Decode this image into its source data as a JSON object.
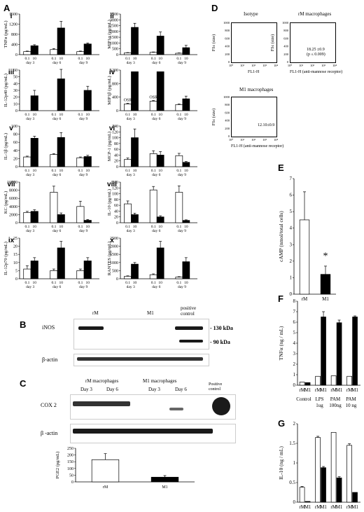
{
  "panel_letters": [
    "A",
    "B",
    "C",
    "D",
    "E",
    "F",
    "G"
  ],
  "chart_data": [
    {
      "id": "A-i",
      "roman": "i",
      "type": "bar",
      "ylabel": "TNFα (pg/mL)",
      "ylim": [
        0,
        1600
      ],
      "yticks": [
        "0",
        "400",
        "800",
        "1200",
        "1600"
      ],
      "categories": [
        "0.1",
        "10",
        "0.1",
        "10",
        "0.1",
        "10"
      ],
      "groups": [
        "day 3",
        "day 6",
        "day 9"
      ],
      "values": [
        120,
        350,
        200,
        1050,
        120,
        420
      ],
      "errors": [
        20,
        40,
        40,
        260,
        20,
        40
      ]
    },
    {
      "id": "A-ii",
      "roman": "ii",
      "type": "bar",
      "ylabel": "MIP1α (pg/mL)",
      "ylim": [
        0,
        3500
      ],
      "yticks": [
        "0",
        "500",
        "1000",
        "1500",
        "2000",
        "2500",
        "3000",
        "3500"
      ],
      "categories": [
        "0.1",
        "10",
        "0.1",
        "10",
        "0.1",
        "10"
      ],
      "groups": [
        "day 3",
        "day 6",
        "day 9"
      ],
      "values": [
        150,
        2350,
        200,
        1600,
        120,
        600
      ],
      "errors": [
        30,
        350,
        30,
        350,
        30,
        200
      ]
    },
    {
      "id": "A-iii",
      "roman": "iii",
      "type": "bar",
      "ylabel": "IL-12p40 (pg/mL)",
      "ylim": [
        0,
        60
      ],
      "yticks": [
        "0",
        "10",
        "20",
        "30",
        "40",
        "50",
        "60"
      ],
      "categories": [
        "0.1",
        "10",
        "0.1",
        "10",
        "0.1",
        "10"
      ],
      "groups": [
        "day 3",
        "day 6",
        "day 9"
      ],
      "values": [
        0,
        22,
        0,
        47,
        0,
        30
      ],
      "errors": [
        0,
        8,
        0,
        14,
        0,
        6
      ]
    },
    {
      "id": "A-iv",
      "roman": "iv",
      "type": "bar",
      "ylabel": "MIP1β (pg/mL)",
      "ylim": [
        0,
        1200
      ],
      "yticks": [
        "0",
        "400",
        "800",
        "1200"
      ],
      "categories": [
        "0.1",
        "10",
        "0.1",
        "10",
        "0.1",
        "10"
      ],
      "groups": [
        "day 3",
        "day 6",
        "day 9"
      ],
      "values": [
        200,
        1150,
        280,
        1150,
        180,
        350
      ],
      "errors": [
        20,
        0,
        20,
        0,
        20,
        80
      ],
      "annotations": [
        "OSR",
        "",
        "OSR",
        "",
        ""
      ]
    },
    {
      "id": "A-v",
      "roman": "v",
      "type": "bar",
      "ylabel": "IL-1β (pg/mL)",
      "ylim": [
        0,
        100
      ],
      "yticks": [
        "0",
        "20",
        "40",
        "60",
        "80",
        "100"
      ],
      "categories": [
        "0.1",
        "10",
        "0.1",
        "10",
        "0.1",
        "10"
      ],
      "groups": [
        "day 3",
        "day 6",
        "day 9"
      ],
      "values": [
        24,
        70,
        30,
        72,
        22,
        25
      ],
      "errors": [
        2,
        5,
        2,
        12,
        2,
        3
      ]
    },
    {
      "id": "A-vi",
      "roman": "vi",
      "type": "bar",
      "ylabel": "MCP-1 (pg/mL)",
      "ylim": [
        0,
        140
      ],
      "yticks": [
        "0",
        "20",
        "40",
        "60",
        "80",
        "100",
        "120",
        "140"
      ],
      "categories": [
        "0.1",
        "10",
        "0.1",
        "10",
        "0.1",
        "10"
      ],
      "groups": [
        "day 3",
        "day 6",
        "day 9"
      ],
      "values": [
        25,
        100,
        45,
        40,
        38,
        15
      ],
      "errors": [
        5,
        30,
        10,
        12,
        8,
        3
      ]
    },
    {
      "id": "A-vii",
      "roman": "vii",
      "type": "bar",
      "ylabel": "KC (pg/mL)",
      "ylim": [
        0,
        10000
      ],
      "yticks": [
        "0",
        "2000",
        "4000",
        "6000",
        "8000",
        "10000"
      ],
      "categories": [
        "0.1",
        "10",
        "0.1",
        "10",
        "0.1",
        "10"
      ],
      "groups": [
        "day 3",
        "day 6",
        "day 9"
      ],
      "values": [
        2500,
        2800,
        7500,
        2000,
        4000,
        600
      ],
      "errors": [
        300,
        400,
        1500,
        400,
        1300,
        200
      ]
    },
    {
      "id": "A-viii",
      "roman": "viii",
      "type": "bar",
      "ylabel": "IL-10 (pg/mL)",
      "ylim": [
        0,
        140
      ],
      "yticks": [
        "0",
        "20",
        "40",
        "60",
        "80",
        "100",
        "120",
        "140"
      ],
      "categories": [
        "0.1",
        "10",
        "0.1",
        "10",
        "0.1",
        "10"
      ],
      "groups": [
        "day 3",
        "day 6",
        "day 9"
      ],
      "values": [
        65,
        28,
        113,
        20,
        105,
        8
      ],
      "errors": [
        10,
        5,
        12,
        4,
        22,
        2
      ]
    },
    {
      "id": "A-ix",
      "roman": "ix",
      "type": "bar",
      "ylabel": "IL-12p70 (pg/mL)",
      "ylim": [
        0,
        25
      ],
      "yticks": [
        "0",
        "5",
        "10",
        "15",
        "20",
        "25"
      ],
      "categories": [
        "0.1",
        "10",
        "0.1",
        "10",
        "0.1",
        "10"
      ],
      "groups": [
        "day 3",
        "day 6",
        "day 9"
      ],
      "values": [
        6,
        11,
        5,
        19,
        5,
        11
      ],
      "errors": [
        2,
        2,
        1,
        4,
        1,
        2
      ]
    },
    {
      "id": "A-x",
      "roman": "x",
      "type": "bar",
      "ylabel": "RANTES (pg/mL)",
      "ylim": [
        0,
        2500
      ],
      "yticks": [
        "0",
        "500",
        "1000",
        "1500",
        "2000",
        "2500"
      ],
      "categories": [
        "0.1",
        "10",
        "0.1",
        "10",
        "0.1",
        "10"
      ],
      "groups": [
        "day 3",
        "day 6",
        "day 9"
      ],
      "values": [
        150,
        900,
        250,
        1900,
        100,
        1050
      ],
      "errors": [
        30,
        100,
        50,
        400,
        30,
        250
      ]
    },
    {
      "id": "C-bottom",
      "type": "bar",
      "ylabel": "PGE2 (pg/mL)",
      "ylim": [
        0,
        250
      ],
      "yticks": [
        "0",
        "50",
        "100",
        "150",
        "200",
        "250"
      ],
      "categories": [
        "rM",
        "M1"
      ],
      "values": [
        165,
        35
      ],
      "errors": [
        45,
        12
      ],
      "fill": [
        "#ffffff",
        "#000000"
      ]
    },
    {
      "id": "E",
      "type": "bar",
      "ylabel": "cAMP (nmol/total cells)",
      "ylim": [
        0,
        7
      ],
      "yticks": [
        "0",
        "1",
        "2",
        "3",
        "4",
        "5",
        "6",
        "7"
      ],
      "categories": [
        "rM",
        "M1"
      ],
      "values": [
        4.5,
        1.2
      ],
      "errors": [
        1.7,
        0.5
      ],
      "fill": [
        "#ffffff",
        "#000000"
      ],
      "annotations": [
        "",
        "*"
      ]
    },
    {
      "id": "F",
      "type": "bar",
      "ylabel": "TNFα (ng / mL)",
      "ylim": [
        0,
        8
      ],
      "yticks": [
        "0",
        "1",
        "2",
        "3",
        "4",
        "5",
        "6",
        "7",
        "8"
      ],
      "categories": [
        "rM",
        "M1",
        "rM",
        "M1",
        "rM",
        "M1",
        "rM",
        "M1"
      ],
      "groups": [
        "Control",
        "LPS\n1ug",
        "PAM\n100ng",
        "PAM\n10 ng"
      ],
      "values": [
        0.3,
        0.25,
        0.85,
        6.5,
        0.9,
        5.95,
        0.85,
        6.5
      ],
      "errors": [
        0,
        0,
        0,
        0.5,
        0,
        0.25,
        0,
        0.1
      ]
    },
    {
      "id": "G",
      "type": "bar",
      "ylabel": "IL-10 (ng / mL)",
      "ylim": [
        0,
        2
      ],
      "yticks": [
        "0",
        "0.5",
        "1",
        "1.5",
        "2"
      ],
      "categories": [
        "rM",
        "M1",
        "rM",
        "M1",
        "rM",
        "M1",
        "rM",
        "M1"
      ],
      "groups": [
        "Control",
        "LPS\n1ug",
        "PAM\n100ng",
        "PAM\n10 ng"
      ],
      "values": [
        0.38,
        0.02,
        1.65,
        0.88,
        1.78,
        0.62,
        1.45,
        0.25
      ],
      "errors": [
        0.02,
        0,
        0.03,
        0.03,
        0,
        0.03,
        0.04,
        0
      ]
    }
  ],
  "flow": {
    "panels": [
      {
        "title": "Isotype",
        "ylabel": "FSc (size)",
        "xlabel": "FL1-H",
        "annotation": ""
      },
      {
        "title": "rM macrophages",
        "ylabel": "FSc (size)",
        "xlabel": "FL1-H (anti-mannose receptor)",
        "annotation": "18.25 ±0.9\n(p ≤ 0.009)"
      },
      {
        "title": "M1 macrophages",
        "ylabel": "FSc (size)",
        "xlabel": "FL1-H (anti-mannose receptor)",
        "annotation": "12.10±0.9"
      }
    ],
    "yticks": [
      "0",
      "200",
      "400",
      "600",
      "800",
      "1000"
    ],
    "xticks": [
      "10⁰",
      "10¹",
      "10²",
      "10³",
      "10⁴"
    ]
  },
  "blot_B": {
    "header": [
      "rM",
      "M1",
      "positive\ncontrol"
    ],
    "rows": [
      "iNOS",
      "β-actin"
    ],
    "markers": [
      "- 130 kDa",
      "- 90 kDa"
    ]
  },
  "blot_C": {
    "header": [
      "rM macrophages",
      "M1 macrophages",
      "Positive\ncontrol"
    ],
    "days": [
      "Day 3",
      "Day 6",
      "Day 3",
      "Day 6"
    ],
    "rows": [
      "COX 2",
      "β -actin"
    ]
  }
}
